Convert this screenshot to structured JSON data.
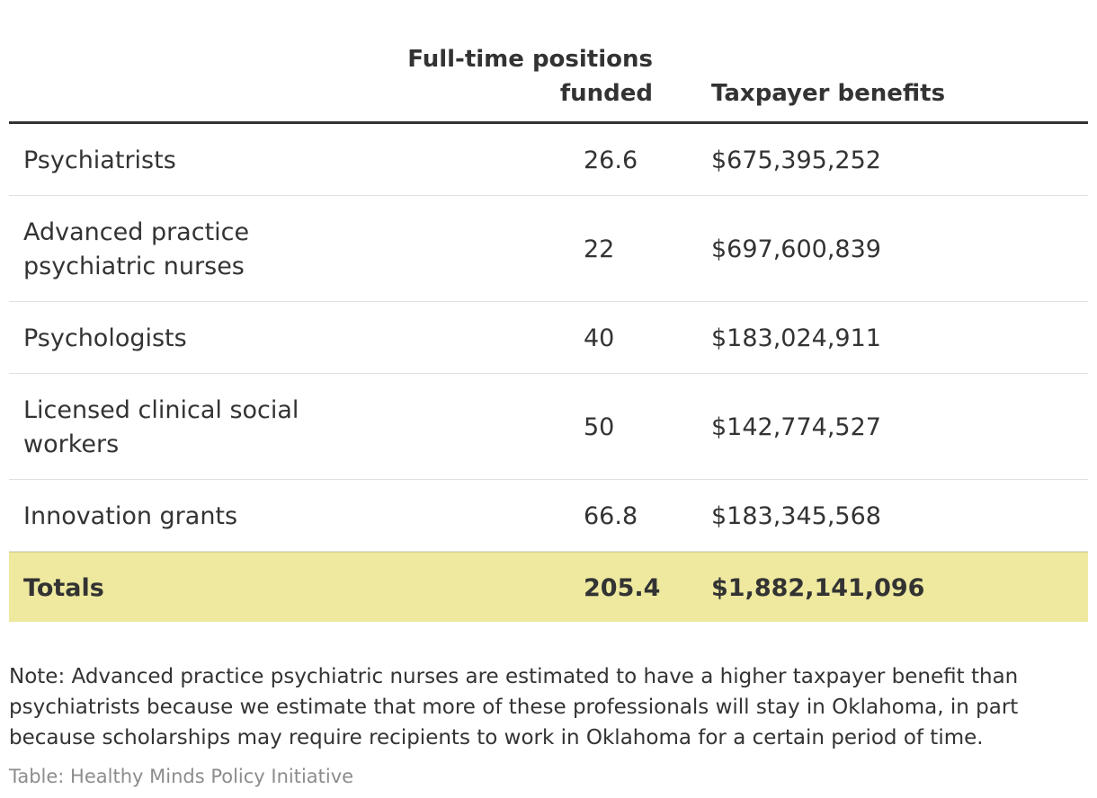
{
  "chart_data": {
    "type": "table",
    "columns": [
      "",
      "Full-time positions funded",
      "Taxpayer benefits"
    ],
    "rows": [
      {
        "label": "Psychiatrists",
        "positions": "26.6",
        "benefits": "$675,395,252"
      },
      {
        "label": "Advanced practice psychiatric nurses",
        "positions": "22",
        "benefits": "$697,600,839"
      },
      {
        "label": "Psychologists",
        "positions": "40",
        "benefits": "$183,024,911"
      },
      {
        "label": "Licensed clinical social workers",
        "positions": "50",
        "benefits": "$142,774,527"
      },
      {
        "label": "Innovation grants",
        "positions": "66.8",
        "benefits": "$183,345,568"
      }
    ],
    "totals": {
      "label": "Totals",
      "positions": "205.4",
      "benefits": "$1,882,141,096"
    },
    "highlight_color": "#eee99f"
  },
  "header": {
    "positions_line1": "Full-time positions",
    "positions_line2": "funded",
    "benefits": "Taxpayer benefits"
  },
  "note": "Note: Advanced practice psychiatric nurses are estimated to have a higher taxpayer benefit than psychiatrists because we estimate that more of these professionals will stay in Oklahoma, in part because scholarships may require recipients to work in Oklahoma for a certain period of time.",
  "source": "Table: Healthy Minds Policy Initiative"
}
